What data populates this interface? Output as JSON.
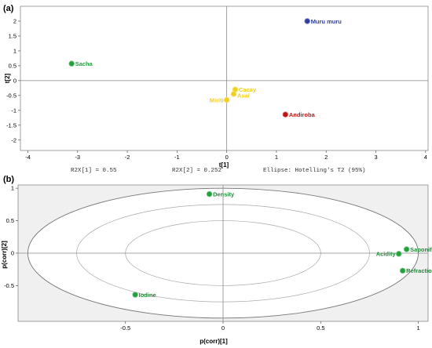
{
  "chart_data": [
    {
      "type": "scatter",
      "panel_label": "(a)",
      "xlabel": "t[1]",
      "ylabel": "t[2]",
      "xlim": [
        -4.15,
        4.05
      ],
      "ylim": [
        -2.35,
        2.5
      ],
      "xticks": [
        -4,
        -3,
        -2,
        -1,
        0,
        1,
        2,
        3,
        4
      ],
      "yticks": [
        -2,
        -1.5,
        -1,
        -0.5,
        0,
        0.5,
        1,
        1.5,
        2
      ],
      "grid": false,
      "points": [
        {
          "label": "Muru muru",
          "x": 1.62,
          "y": 2.0,
          "color": "#2e3f9e"
        },
        {
          "label": "Sacha",
          "x": -3.12,
          "y": 0.57,
          "color": "#22a03c"
        },
        {
          "label": "Cacay",
          "x": 0.17,
          "y": -0.3,
          "color": "#f2cf1f"
        },
        {
          "label": "Asai",
          "x": 0.14,
          "y": -0.45,
          "color": "#f2cf1f"
        },
        {
          "label": "Miriti",
          "x": 0.0,
          "y": -0.65,
          "color": "#f2cf1f"
        },
        {
          "label": "Andiroba",
          "x": 1.18,
          "y": -1.14,
          "color": "#c01515"
        }
      ],
      "footer": {
        "r2x1": "R2X[1] = 0.55",
        "r2x2": "R2X[2] = 0.252",
        "ellipse": "Ellipse: Hotelling's T2 (95%)"
      }
    },
    {
      "type": "scatter",
      "panel_label": "(b)",
      "xlabel": "p(corr)[1]",
      "ylabel": "p(corr)[2]",
      "xlim": [
        -1.05,
        1.05
      ],
      "ylim": [
        -1.05,
        1.05
      ],
      "xticks": [
        -0.5,
        0,
        0.5,
        1
      ],
      "yticks": [
        -0.5,
        0,
        0.5,
        1
      ],
      "grid": false,
      "ellipses_radii": [
        1.0,
        0.75,
        0.5
      ],
      "points": [
        {
          "label": "Density",
          "x": -0.07,
          "y": 0.91,
          "color": "#22a03c"
        },
        {
          "label": "Saponifica",
          "x": 0.94,
          "y": 0.06,
          "color": "#22a03c"
        },
        {
          "label": "Acidity",
          "x": 0.9,
          "y": -0.01,
          "color": "#22a03c"
        },
        {
          "label": "Refraction",
          "x": 0.92,
          "y": -0.27,
          "color": "#22a03c"
        },
        {
          "label": "Iodine",
          "x": -0.45,
          "y": -0.64,
          "color": "#22a03c"
        }
      ]
    }
  ]
}
